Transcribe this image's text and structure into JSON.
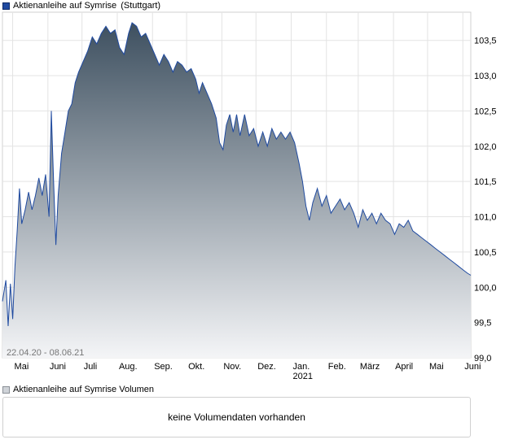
{
  "chart_data": {
    "type": "area",
    "title": "Aktienanleihe auf Symrise",
    "exchange": "(Stuttgart)",
    "date_range": "22.04.20 - 08.06.21",
    "ylim": [
      99.0,
      103.9
    ],
    "yticks": [
      "99,0",
      "99,5",
      "100,0",
      "100,5",
      "101,0",
      "101,5",
      "102,0",
      "102,5",
      "103,0",
      "103,5"
    ],
    "xticks": [
      {
        "label": "Mai",
        "date": "2020-05-01"
      },
      {
        "label": "Juni",
        "date": "2020-06-01"
      },
      {
        "label": "Juli",
        "date": "2020-07-01"
      },
      {
        "label": "Aug.",
        "date": "2020-08-01"
      },
      {
        "label": "Sep.",
        "date": "2020-09-01"
      },
      {
        "label": "Okt.",
        "date": "2020-10-01"
      },
      {
        "label": "Nov.",
        "date": "2020-11-01"
      },
      {
        "label": "Dez.",
        "date": "2020-12-01"
      },
      {
        "label": "Jan.",
        "date": "2021-01-01",
        "sublabel": "2021"
      },
      {
        "label": "Feb.",
        "date": "2021-02-01"
      },
      {
        "label": "März",
        "date": "2021-03-01"
      },
      {
        "label": "April",
        "date": "2021-04-01"
      },
      {
        "label": "Mai",
        "date": "2021-05-01"
      },
      {
        "label": "Juni",
        "date": "2021-06-01"
      }
    ],
    "grid": true,
    "line_color": "#1f4aa0",
    "fill_top_color": "#3e5060",
    "fill_bottom_color": "#f4f5f7",
    "series": [
      {
        "name": "Aktienanleihe auf Symrise",
        "points": [
          [
            "2020-04-22",
            99.8
          ],
          [
            "2020-04-25",
            100.1
          ],
          [
            "2020-04-27",
            99.45
          ],
          [
            "2020-04-29",
            100.05
          ],
          [
            "2020-05-01",
            99.55
          ],
          [
            "2020-05-03",
            100.3
          ],
          [
            "2020-05-05",
            100.8
          ],
          [
            "2020-05-07",
            101.4
          ],
          [
            "2020-05-09",
            100.9
          ],
          [
            "2020-05-12",
            101.1
          ],
          [
            "2020-05-15",
            101.35
          ],
          [
            "2020-05-18",
            101.1
          ],
          [
            "2020-05-21",
            101.3
          ],
          [
            "2020-05-24",
            101.55
          ],
          [
            "2020-05-27",
            101.3
          ],
          [
            "2020-05-30",
            101.6
          ],
          [
            "2020-06-02",
            101.0
          ],
          [
            "2020-06-04",
            102.5
          ],
          [
            "2020-06-06",
            101.5
          ],
          [
            "2020-06-08",
            100.6
          ],
          [
            "2020-06-10",
            101.3
          ],
          [
            "2020-06-13",
            101.9
          ],
          [
            "2020-06-16",
            102.2
          ],
          [
            "2020-06-19",
            102.5
          ],
          [
            "2020-06-22",
            102.6
          ],
          [
            "2020-06-25",
            102.9
          ],
          [
            "2020-06-28",
            103.05
          ],
          [
            "2020-07-02",
            103.2
          ],
          [
            "2020-07-06",
            103.35
          ],
          [
            "2020-07-10",
            103.55
          ],
          [
            "2020-07-14",
            103.45
          ],
          [
            "2020-07-18",
            103.6
          ],
          [
            "2020-07-22",
            103.7
          ],
          [
            "2020-07-26",
            103.6
          ],
          [
            "2020-07-30",
            103.65
          ],
          [
            "2020-08-03",
            103.4
          ],
          [
            "2020-08-07",
            103.3
          ],
          [
            "2020-08-11",
            103.6
          ],
          [
            "2020-08-14",
            103.75
          ],
          [
            "2020-08-18",
            103.7
          ],
          [
            "2020-08-22",
            103.55
          ],
          [
            "2020-08-26",
            103.6
          ],
          [
            "2020-08-30",
            103.45
          ],
          [
            "2020-09-03",
            103.3
          ],
          [
            "2020-09-07",
            103.15
          ],
          [
            "2020-09-11",
            103.3
          ],
          [
            "2020-09-15",
            103.2
          ],
          [
            "2020-09-19",
            103.05
          ],
          [
            "2020-09-23",
            103.2
          ],
          [
            "2020-09-27",
            103.15
          ],
          [
            "2020-10-01",
            103.05
          ],
          [
            "2020-10-05",
            103.1
          ],
          [
            "2020-10-09",
            102.95
          ],
          [
            "2020-10-12",
            102.75
          ],
          [
            "2020-10-15",
            102.9
          ],
          [
            "2020-10-19",
            102.75
          ],
          [
            "2020-10-23",
            102.6
          ],
          [
            "2020-10-27",
            102.4
          ],
          [
            "2020-10-30",
            102.05
          ],
          [
            "2020-11-02",
            101.95
          ],
          [
            "2020-11-05",
            102.3
          ],
          [
            "2020-11-08",
            102.45
          ],
          [
            "2020-11-11",
            102.2
          ],
          [
            "2020-11-14",
            102.45
          ],
          [
            "2020-11-17",
            102.15
          ],
          [
            "2020-11-21",
            102.45
          ],
          [
            "2020-11-25",
            102.15
          ],
          [
            "2020-11-29",
            102.25
          ],
          [
            "2020-12-03",
            102.0
          ],
          [
            "2020-12-07",
            102.2
          ],
          [
            "2020-12-11",
            102.0
          ],
          [
            "2020-12-15",
            102.25
          ],
          [
            "2020-12-19",
            102.1
          ],
          [
            "2020-12-23",
            102.2
          ],
          [
            "2020-12-27",
            102.1
          ],
          [
            "2020-12-31",
            102.2
          ],
          [
            "2021-01-04",
            102.05
          ],
          [
            "2021-01-08",
            101.75
          ],
          [
            "2021-01-11",
            101.5
          ],
          [
            "2021-01-14",
            101.15
          ],
          [
            "2021-01-17",
            100.95
          ],
          [
            "2021-01-20",
            101.2
          ],
          [
            "2021-01-24",
            101.4
          ],
          [
            "2021-01-28",
            101.15
          ],
          [
            "2021-02-01",
            101.3
          ],
          [
            "2021-02-05",
            101.05
          ],
          [
            "2021-02-09",
            101.15
          ],
          [
            "2021-02-13",
            101.25
          ],
          [
            "2021-02-17",
            101.1
          ],
          [
            "2021-02-21",
            101.2
          ],
          [
            "2021-02-25",
            101.05
          ],
          [
            "2021-03-01",
            100.85
          ],
          [
            "2021-03-05",
            101.1
          ],
          [
            "2021-03-09",
            100.95
          ],
          [
            "2021-03-13",
            101.05
          ],
          [
            "2021-03-17",
            100.9
          ],
          [
            "2021-03-21",
            101.05
          ],
          [
            "2021-03-25",
            100.95
          ],
          [
            "2021-03-29",
            100.9
          ],
          [
            "2021-04-02",
            100.75
          ],
          [
            "2021-04-06",
            100.9
          ],
          [
            "2021-04-10",
            100.85
          ],
          [
            "2021-04-14",
            100.95
          ],
          [
            "2021-04-18",
            100.8
          ],
          [
            "2021-04-22",
            100.75
          ],
          [
            "2021-04-26",
            100.7
          ],
          [
            "2021-04-30",
            100.65
          ],
          [
            "2021-05-04",
            100.6
          ],
          [
            "2021-05-08",
            100.55
          ],
          [
            "2021-05-12",
            100.5
          ],
          [
            "2021-05-16",
            100.45
          ],
          [
            "2021-05-20",
            100.4
          ],
          [
            "2021-05-24",
            100.35
          ],
          [
            "2021-05-28",
            100.3
          ],
          [
            "2021-06-01",
            100.25
          ],
          [
            "2021-06-05",
            100.2
          ],
          [
            "2021-06-08",
            100.17
          ]
        ]
      }
    ]
  },
  "volume_panel": {
    "legend": "Aktienanleihe auf Symrise  Volumen",
    "message": "keine Volumendaten vorhanden"
  }
}
